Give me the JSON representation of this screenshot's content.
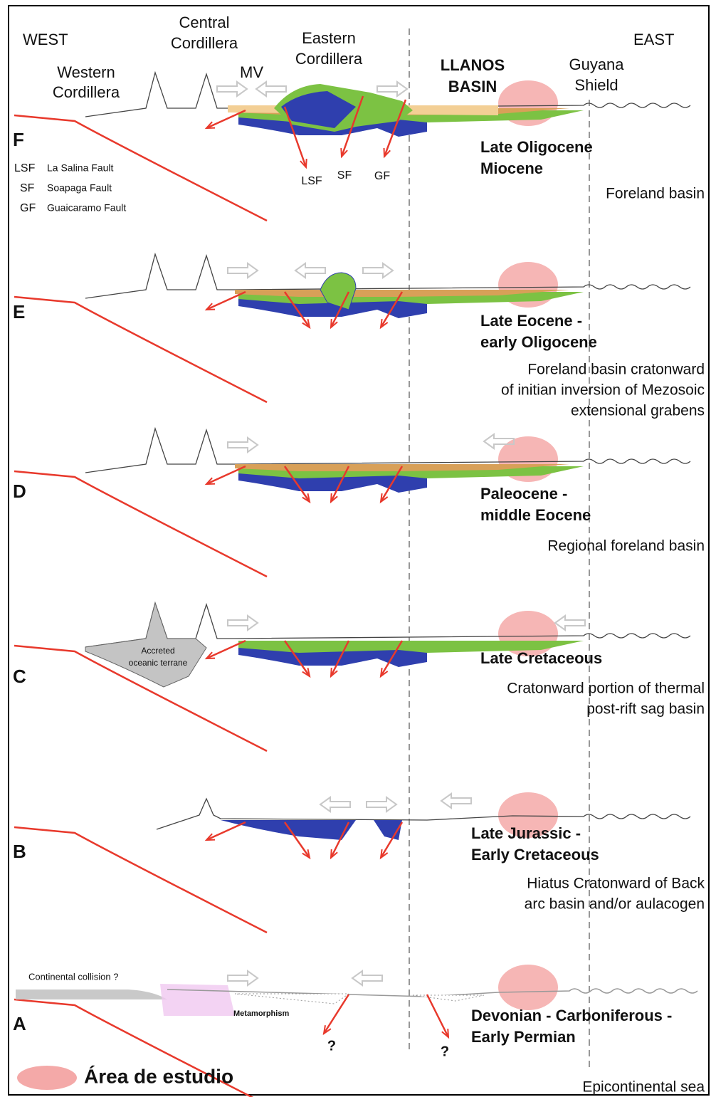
{
  "header": {
    "west": "WEST",
    "east": "EAST",
    "western_cordillera": [
      "Western",
      "Cordillera"
    ],
    "central_cordillera": [
      "Central",
      "Cordillera"
    ],
    "mv": "MV",
    "eastern_cordillera": [
      "Eastern",
      "Cordillera"
    ],
    "llanos_basin": [
      "LLANOS",
      "BASIN"
    ],
    "guyana_shield": [
      "Guyana",
      "Shield"
    ]
  },
  "fault_legend": [
    {
      "abbr": "LSF",
      "name": "La Salina Fault"
    },
    {
      "abbr": "SF",
      "name": "Soapaga Fault"
    },
    {
      "abbr": "GF",
      "name": "Guaicaramo Fault"
    }
  ],
  "fault_labels": [
    "LSF",
    "SF",
    "GF"
  ],
  "panels": [
    {
      "letter": "F",
      "age": [
        "Late Oligocene",
        "Miocene"
      ],
      "description": [
        "Foreland basin"
      ]
    },
    {
      "letter": "E",
      "age": [
        "Late Eocene -",
        "early Oligocene"
      ],
      "description": [
        "Foreland basin cratonward",
        "of initian inversion  of Mezosoic",
        "extensional grabens"
      ]
    },
    {
      "letter": "D",
      "age": [
        "Paleocene -",
        "middle Eocene"
      ],
      "description": [
        "Regional foreland basin"
      ]
    },
    {
      "letter": "C",
      "age": [
        "Late Cretaceous"
      ],
      "description": [
        "Cratonward portion  of thermal",
        "post-rift sag basin"
      ]
    },
    {
      "letter": "B",
      "age": [
        "Late Jurassic -",
        "Early Cretaceous"
      ],
      "description": [
        "Hiatus Cratonward of Back",
        "arc basin and/or aulacogen"
      ]
    },
    {
      "letter": "A",
      "age": [
        "Devonian - Carboniferous -",
        "Early Permian"
      ],
      "description": [
        "Epicontinental sea"
      ]
    }
  ],
  "annotations": {
    "accreted_terrane": [
      "Accreted",
      "oceanic terrane"
    ],
    "continental_collision": "Continental collision ?",
    "metamorphism": "Metamorphism",
    "question_marks": [
      "?",
      "?"
    ]
  },
  "legend": {
    "study_area": "Área de estudio"
  }
}
